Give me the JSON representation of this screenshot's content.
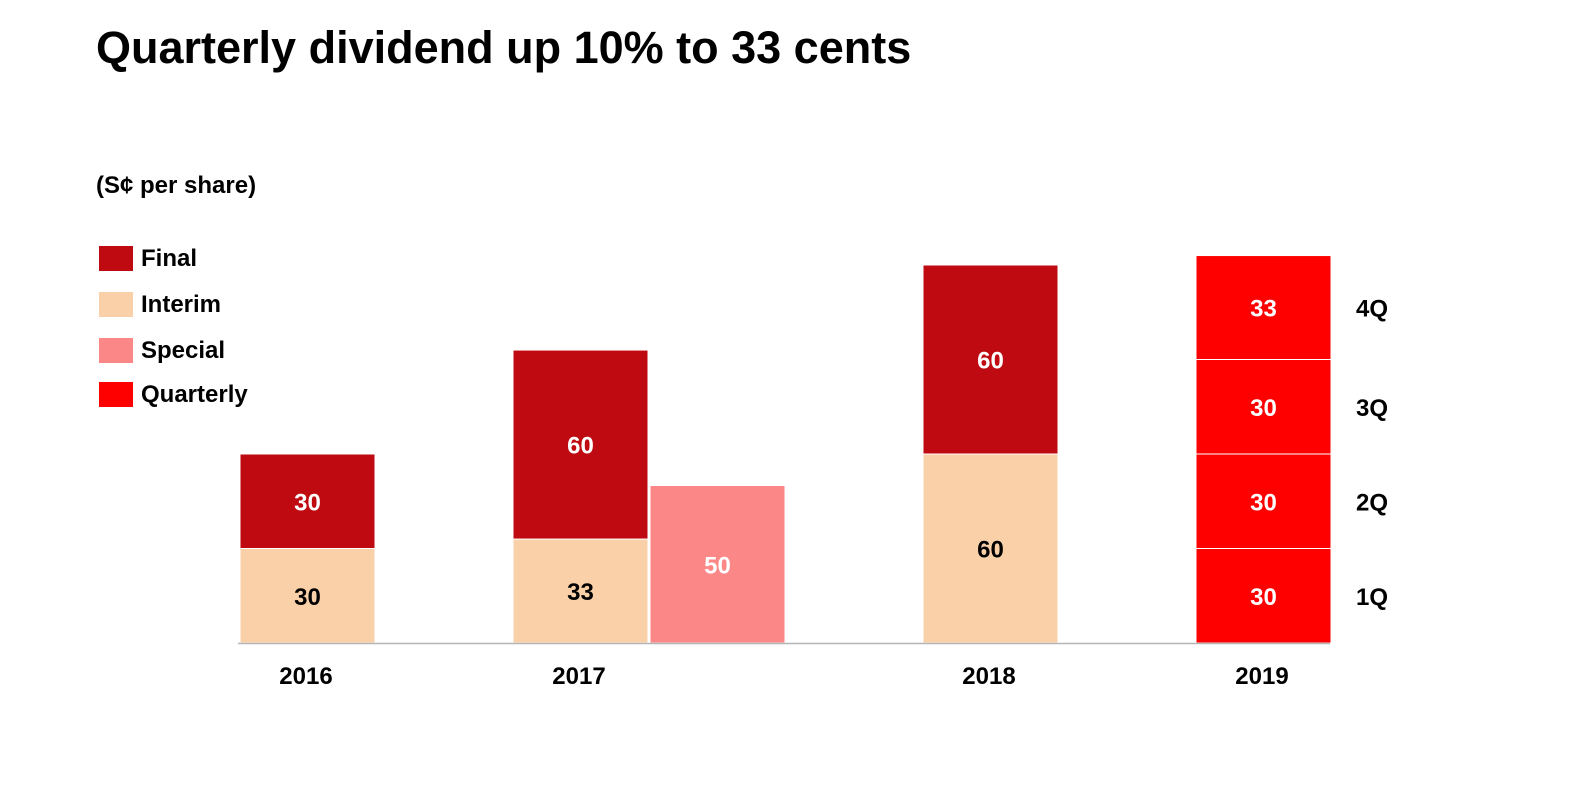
{
  "page": {
    "title": "Quarterly dividend up 10% to 33 cents",
    "unit_label": "(S¢ per share)"
  },
  "legend": [
    {
      "label": "Final",
      "color": "#BE0A10"
    },
    {
      "label": "Interim",
      "color": "#F9D0A8"
    },
    {
      "label": "Special",
      "color": "#FC8787"
    },
    {
      "label": "Quarterly",
      "color": "#FF0000"
    }
  ],
  "chart_data": {
    "type": "bar",
    "stacked": true,
    "title": "Quarterly dividend up 10% to 33 cents",
    "unit": "(S¢ per share)",
    "categories": [
      "2016",
      "2017",
      "2018",
      "2019"
    ],
    "series": [
      {
        "name": "Interim",
        "color": "#F9D0A8",
        "label_color": "#000000",
        "values": [
          30,
          33,
          60,
          null
        ]
      },
      {
        "name": "Final",
        "color": "#BE0A10",
        "label_color": "#ffffff",
        "values": [
          30,
          60,
          60,
          null
        ]
      },
      {
        "name": "Special",
        "color": "#FC8787",
        "label_color": "#ffffff",
        "values": [
          null,
          50,
          null,
          null
        ],
        "side_bar": true
      },
      {
        "name": "Quarterly",
        "color": "#FF0000",
        "label_color": "#ffffff",
        "values": [
          null,
          null,
          null,
          [
            30,
            30,
            30,
            33
          ]
        ]
      }
    ],
    "quarter_labels": [
      "1Q",
      "2Q",
      "3Q",
      "4Q"
    ],
    "ylim": [
      0,
      120
    ],
    "grid": false,
    "legend_position": "left"
  }
}
